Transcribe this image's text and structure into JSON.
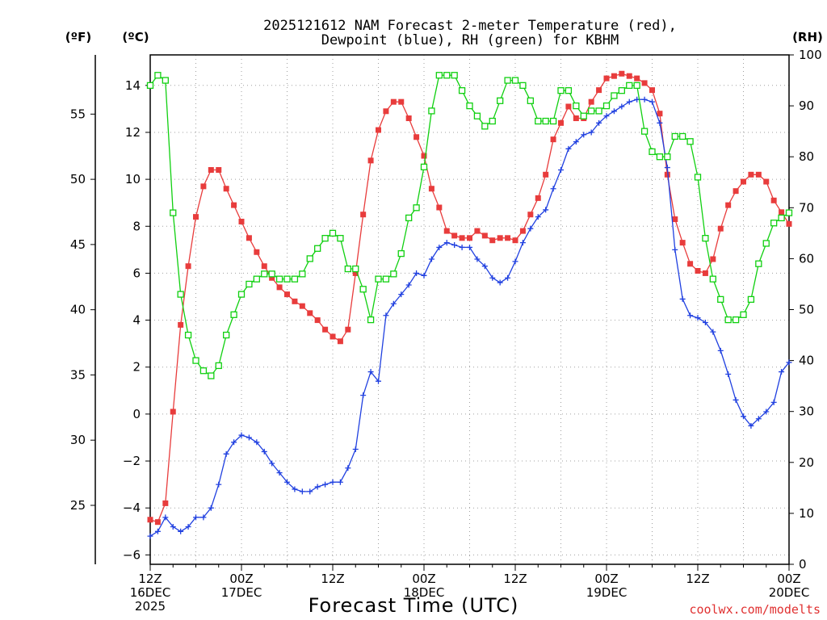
{
  "chart_data": {
    "type": "line",
    "title": "2025121612 NAM Forecast 2-meter Temperature (red),",
    "subtitle": "Dewpoint (blue), RH (green) for KBHM",
    "xlabel": "Forecast Time (UTC)",
    "credit": "coolwx.com/modelts",
    "units": {
      "fahrenheit": "(ºF)",
      "celsius": "(ºC)",
      "rh": "(RH)"
    },
    "x_range_hours": [
      0,
      84
    ],
    "x_ticks": [
      {
        "hour": 0,
        "line1": "12Z",
        "line2": "16DEC",
        "line3": "2025"
      },
      {
        "hour": 12,
        "line1": "00Z",
        "line2": "17DEC",
        "line3": ""
      },
      {
        "hour": 24,
        "line1": "12Z",
        "line2": "",
        "line3": ""
      },
      {
        "hour": 36,
        "line1": "00Z",
        "line2": "18DEC",
        "line3": ""
      },
      {
        "hour": 48,
        "line1": "12Z",
        "line2": "",
        "line3": ""
      },
      {
        "hour": 60,
        "line1": "00Z",
        "line2": "19DEC",
        "line3": ""
      },
      {
        "hour": 72,
        "line1": "12Z",
        "line2": "",
        "line3": ""
      },
      {
        "hour": 84,
        "line1": "00Z",
        "line2": "20DEC",
        "line3": ""
      }
    ],
    "y_celsius": {
      "range": [
        -6.4,
        15.3
      ],
      "ticks": [
        "14",
        "12",
        "10",
        "8",
        "6",
        "4",
        "2",
        "0",
        "−2",
        "−4",
        "−6"
      ],
      "tick_values": [
        14,
        12,
        10,
        8,
        6,
        4,
        2,
        0,
        -2,
        -4,
        -6
      ]
    },
    "y_fahrenheit": {
      "ticks": [
        "55",
        "50",
        "45",
        "40",
        "35",
        "30",
        "25"
      ],
      "tick_values": [
        55,
        50,
        45,
        40,
        35,
        30,
        25
      ]
    },
    "y_rh": {
      "range": [
        0,
        100
      ],
      "ticks": [
        "100",
        "90",
        "80",
        "70",
        "60",
        "50",
        "40",
        "30",
        "20",
        "10",
        "0"
      ],
      "tick_values": [
        100,
        90,
        80,
        70,
        60,
        50,
        40,
        30,
        20,
        10,
        0
      ]
    },
    "grid": true,
    "series": [
      {
        "name": "Temperature",
        "unit": "C",
        "color": "#e83c3c",
        "marker": "filled-square",
        "values": [
          -4.5,
          -4.6,
          -3.8,
          0.1,
          3.8,
          6.3,
          8.4,
          9.7,
          10.4,
          10.4,
          9.6,
          8.9,
          8.2,
          7.5,
          6.9,
          6.3,
          5.8,
          5.4,
          5.1,
          4.8,
          4.6,
          4.3,
          4.0,
          3.6,
          3.3,
          3.1,
          3.6,
          6.0,
          8.5,
          10.8,
          12.1,
          12.9,
          13.3,
          13.3,
          12.6,
          11.8,
          11.0,
          9.6,
          8.8,
          7.8,
          7.6,
          7.5,
          7.5,
          7.8,
          7.6,
          7.4,
          7.5,
          7.5,
          7.4,
          7.8,
          8.5,
          9.2,
          10.2,
          11.7,
          12.4,
          13.1,
          12.6,
          12.6,
          13.3,
          13.8,
          14.3,
          14.4,
          14.5,
          14.4,
          14.3,
          14.1,
          13.8,
          12.8,
          10.2,
          8.3,
          7.3,
          6.4,
          6.1,
          6.0,
          6.6,
          7.9,
          8.9,
          9.5,
          9.9,
          10.2,
          10.2,
          9.9,
          9.1,
          8.6,
          8.1
        ]
      },
      {
        "name": "Dewpoint",
        "unit": "C",
        "color": "#2040e0",
        "marker": "plus",
        "values": [
          -5.2,
          -5.0,
          -4.4,
          -4.8,
          -5.0,
          -4.8,
          -4.4,
          -4.4,
          -4.0,
          -3.0,
          -1.7,
          -1.2,
          -0.9,
          -1.0,
          -1.2,
          -1.6,
          -2.1,
          -2.5,
          -2.9,
          -3.2,
          -3.3,
          -3.3,
          -3.1,
          -3.0,
          -2.9,
          -2.9,
          -2.3,
          -1.5,
          0.8,
          1.8,
          1.4,
          4.2,
          4.7,
          5.1,
          5.5,
          6.0,
          5.9,
          6.6,
          7.1,
          7.3,
          7.2,
          7.1,
          7.1,
          6.6,
          6.3,
          5.8,
          5.6,
          5.8,
          6.5,
          7.3,
          7.9,
          8.4,
          8.7,
          9.6,
          10.4,
          11.3,
          11.6,
          11.9,
          12.0,
          12.4,
          12.7,
          12.9,
          13.1,
          13.3,
          13.4,
          13.4,
          13.3,
          12.4,
          10.5,
          7.0,
          4.9,
          4.2,
          4.1,
          3.9,
          3.5,
          2.7,
          1.7,
          0.6,
          -0.1,
          -0.5,
          -0.2,
          0.1,
          0.5,
          1.8,
          2.2
        ]
      },
      {
        "name": "RH",
        "unit": "%",
        "color": "#10d010",
        "marker": "open-square",
        "values": [
          94,
          96,
          95,
          69,
          53,
          45,
          40,
          38,
          37,
          39,
          45,
          49,
          53,
          55,
          56,
          57,
          57,
          56,
          56,
          56,
          57,
          60,
          62,
          64,
          65,
          64,
          58,
          58,
          54,
          48,
          56,
          56,
          57,
          61,
          68,
          70,
          78,
          89,
          96,
          96,
          96,
          93,
          90,
          88,
          86,
          87,
          91,
          95,
          95,
          94,
          91,
          87,
          87,
          87,
          93,
          93,
          90,
          88,
          89,
          89,
          90,
          92,
          93,
          94,
          94,
          85,
          81,
          80,
          80,
          84,
          84,
          83,
          76,
          64,
          56,
          52,
          48,
          48,
          49,
          52,
          59,
          63,
          67,
          68,
          69
        ]
      }
    ]
  }
}
